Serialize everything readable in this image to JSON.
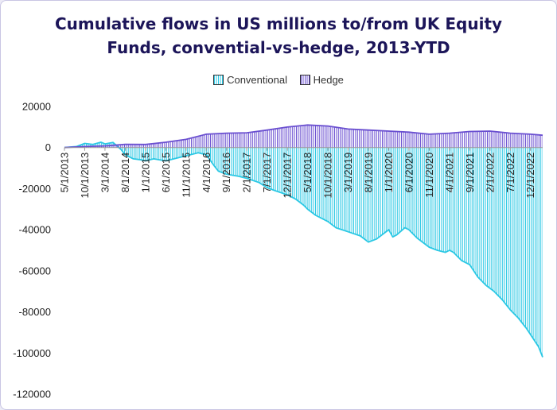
{
  "title_line1": "Cumulative flows in US millions to/from UK Equity",
  "title_line2": "Funds, convential-vs-hedge, 2013-YTD",
  "chart_data": {
    "type": "area",
    "title": "Cumulative flows in US millions to/from UK Equity Funds, convential-vs-hedge, 2013-YTD",
    "legend_position": "top",
    "grid": false,
    "ylim": [
      -120000,
      20000
    ],
    "y_ticks": [
      20000,
      0,
      -20000,
      -40000,
      -60000,
      -80000,
      -100000,
      -120000
    ],
    "x_tick_labels": [
      "5/1/2013",
      "10/1/2013",
      "3/1/2014",
      "8/1/2014",
      "1/1/2015",
      "6/1/2015",
      "11/1/2015",
      "4/1/2016",
      "9/1/2016",
      "2/1/2017",
      "7/1/2017",
      "12/1/2017",
      "5/1/2018",
      "10/1/2018",
      "3/1/2019",
      "8/1/2019",
      "1/1/2020",
      "6/1/2020",
      "11/1/2020",
      "4/1/2021",
      "9/1/2021",
      "2/1/2022",
      "7/1/2022",
      "12/1/2022"
    ],
    "x_start": "5/1/2013",
    "x_end": "3/1/2023",
    "series": [
      {
        "name": "Conventional",
        "color": "#2bc8e4",
        "points": [
          [
            "5/1/2013",
            0
          ],
          [
            "8/1/2013",
            500
          ],
          [
            "10/1/2013",
            2000
          ],
          [
            "12/1/2013",
            1500
          ],
          [
            "2/1/2014",
            2600
          ],
          [
            "3/1/2014",
            1800
          ],
          [
            "5/1/2014",
            2500
          ],
          [
            "7/1/2014",
            -1000
          ],
          [
            "8/1/2014",
            -3500
          ],
          [
            "10/1/2014",
            -5500
          ],
          [
            "12/1/2014",
            -6000
          ],
          [
            "1/1/2015",
            -6500
          ],
          [
            "3/1/2015",
            -5500
          ],
          [
            "6/1/2015",
            -6500
          ],
          [
            "9/1/2015",
            -5000
          ],
          [
            "11/1/2015",
            -4000
          ],
          [
            "2/1/2016",
            -2500
          ],
          [
            "4/1/2016",
            -3500
          ],
          [
            "6/1/2016",
            -9000
          ],
          [
            "7/1/2016",
            -11500
          ],
          [
            "9/1/2016",
            -13000
          ],
          [
            "12/1/2016",
            -14000
          ],
          [
            "2/1/2017",
            -15000
          ],
          [
            "5/1/2017",
            -17000
          ],
          [
            "7/1/2017",
            -19500
          ],
          [
            "9/1/2017",
            -21000
          ],
          [
            "12/1/2017",
            -23000
          ],
          [
            "2/1/2018",
            -25000
          ],
          [
            "4/1/2018",
            -28000
          ],
          [
            "5/1/2018",
            -30000
          ],
          [
            "7/1/2018",
            -33000
          ],
          [
            "10/1/2018",
            -36000
          ],
          [
            "12/1/2018",
            -39000
          ],
          [
            "3/1/2019",
            -41000
          ],
          [
            "6/1/2019",
            -43000
          ],
          [
            "8/1/2019",
            -46000
          ],
          [
            "10/1/2019",
            -44500
          ],
          [
            "12/1/2019",
            -41500
          ],
          [
            "1/1/2020",
            -40000
          ],
          [
            "2/1/2020",
            -43500
          ],
          [
            "3/1/2020",
            -42500
          ],
          [
            "5/1/2020",
            -39000
          ],
          [
            "6/1/2020",
            -40000
          ],
          [
            "8/1/2020",
            -44000
          ],
          [
            "11/1/2020",
            -48500
          ],
          [
            "1/1/2021",
            -50000
          ],
          [
            "3/1/2021",
            -51000
          ],
          [
            "4/1/2021",
            -50000
          ],
          [
            "5/1/2021",
            -51000
          ],
          [
            "7/1/2021",
            -55000
          ],
          [
            "9/1/2021",
            -57000
          ],
          [
            "11/1/2021",
            -63000
          ],
          [
            "1/1/2022",
            -67000
          ],
          [
            "3/1/2022",
            -70000
          ],
          [
            "5/1/2022",
            -74000
          ],
          [
            "7/1/2022",
            -79000
          ],
          [
            "9/1/2022",
            -83000
          ],
          [
            "11/1/2022",
            -88000
          ],
          [
            "12/1/2022",
            -91000
          ],
          [
            "2/1/2023",
            -97000
          ],
          [
            "3/1/2023",
            -102000
          ]
        ]
      },
      {
        "name": "Hedge",
        "color": "#6a4fd0",
        "points": [
          [
            "5/1/2013",
            0
          ],
          [
            "10/1/2013",
            500
          ],
          [
            "3/1/2014",
            800
          ],
          [
            "8/1/2014",
            1600
          ],
          [
            "1/1/2015",
            1500
          ],
          [
            "6/1/2015",
            2600
          ],
          [
            "11/1/2015",
            4000
          ],
          [
            "4/1/2016",
            6500
          ],
          [
            "9/1/2016",
            7000
          ],
          [
            "2/1/2017",
            7200
          ],
          [
            "7/1/2017",
            8500
          ],
          [
            "12/1/2017",
            10000
          ],
          [
            "5/1/2018",
            11000
          ],
          [
            "10/1/2018",
            10500
          ],
          [
            "3/1/2019",
            9000
          ],
          [
            "8/1/2019",
            8500
          ],
          [
            "1/1/2020",
            8000
          ],
          [
            "6/1/2020",
            7500
          ],
          [
            "11/1/2020",
            6500
          ],
          [
            "4/1/2021",
            7000
          ],
          [
            "9/1/2021",
            7800
          ],
          [
            "2/1/2022",
            8000
          ],
          [
            "7/1/2022",
            7000
          ],
          [
            "12/1/2022",
            6500
          ],
          [
            "3/1/2023",
            6000
          ]
        ]
      }
    ]
  }
}
